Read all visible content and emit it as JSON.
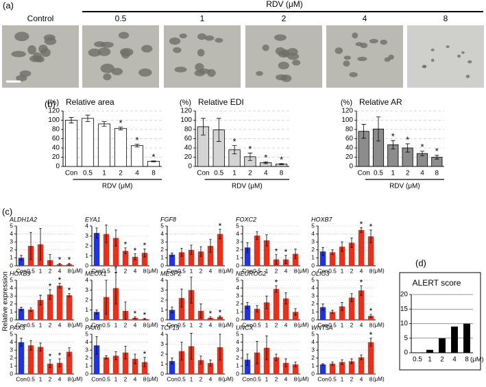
{
  "panel_labels": [
    "(a)",
    "(b)",
    "(c)",
    "(d)"
  ],
  "panel_a": {
    "header": "RDV (μM)",
    "labels": [
      "Control",
      "0.5",
      "1",
      "2",
      "4",
      "8"
    ]
  },
  "panel_c": {
    "ylabel": "Relative expression"
  },
  "chart_data": [
    {
      "type": "bar",
      "unit_label": "(%)",
      "title": "Relative area",
      "xlabel": "RDV (μM)",
      "categories": [
        "Con",
        "0.5",
        "1",
        "2",
        "4",
        "8"
      ],
      "values": [
        100,
        104,
        92,
        82,
        45,
        11
      ],
      "errors": [
        6,
        7,
        5,
        3,
        3,
        1
      ],
      "significance": [
        null,
        null,
        null,
        "*",
        "*",
        "*"
      ],
      "significance_color": "#000000",
      "color": "#ffffff",
      "ylim": [
        0,
        120
      ],
      "yticks": [
        0,
        20,
        40,
        60,
        80,
        100,
        120
      ],
      "grid": true
    },
    {
      "type": "bar",
      "unit_label": "(%)",
      "title": "Relative EDI",
      "xlabel": "RDV (μM)",
      "categories": [
        "Con",
        "0.5",
        "1",
        "2",
        "4",
        "8"
      ],
      "values": [
        86,
        79,
        36,
        21,
        8,
        5
      ],
      "errors": [
        18,
        25,
        9,
        8,
        2,
        1
      ],
      "significance": [
        null,
        null,
        "*",
        "*",
        "*",
        "*"
      ],
      "significance_color": "#000000",
      "color": "#d4d4d4",
      "ylim": [
        0,
        120
      ],
      "yticks": [
        0,
        20,
        40,
        60,
        80,
        100,
        120
      ],
      "grid": true
    },
    {
      "type": "bar",
      "unit_label": "(%)",
      "title": "Relative AR",
      "xlabel": "RDV (μM)",
      "categories": [
        "Con",
        "0.5",
        "1",
        "2",
        "4",
        "8"
      ],
      "values": [
        76,
        81,
        47,
        40,
        28,
        20
      ],
      "errors": [
        15,
        26,
        9,
        9,
        5,
        4
      ],
      "significance": [
        null,
        null,
        "*",
        "*",
        "*",
        "*"
      ],
      "significance_color": "#000000",
      "color": "#8c8c8c",
      "ylim": [
        0,
        120
      ],
      "yticks": [
        0,
        20,
        40,
        60,
        80,
        100,
        120
      ],
      "grid": true
    },
    {
      "type": "bar",
      "title": "ALDH1A2",
      "categories": [
        "Con",
        "0.5",
        "1",
        "2",
        "4",
        "8"
      ],
      "x_unit": "(μM)",
      "values": [
        1.0,
        2.5,
        2.7,
        0.7,
        0.2,
        0.2
      ],
      "errors": [
        0.3,
        1.7,
        2.0,
        0.7,
        0.1,
        0.1
      ],
      "significance": [
        null,
        null,
        null,
        null,
        "*",
        "*"
      ],
      "significance_color": "#e8311c",
      "colors": [
        "#2233dd",
        "#e8311c",
        "#e8311c",
        "#e8311c",
        "#e8311c",
        "#e8311c"
      ],
      "ylim": [
        0,
        5
      ],
      "yticks": [
        0,
        1,
        2,
        3,
        4,
        5
      ],
      "grid": true
    },
    {
      "type": "bar",
      "title": "EYA1",
      "categories": [
        "Con",
        "0.5",
        "1",
        "2",
        "4",
        "8"
      ],
      "x_unit": "(μM)",
      "values": [
        3.3,
        3.2,
        2.8,
        1.5,
        0.9,
        1.3
      ],
      "errors": [
        0.5,
        0.9,
        0.8,
        0.3,
        0.3,
        0.4
      ],
      "significance": [
        null,
        null,
        null,
        "*",
        "*",
        "*"
      ],
      "significance_color": "#e8311c",
      "colors": [
        "#2233dd",
        "#e8311c",
        "#e8311c",
        "#e8311c",
        "#e8311c",
        "#e8311c"
      ],
      "ylim": [
        0,
        4
      ],
      "yticks": [
        0,
        1,
        2,
        3,
        4
      ],
      "grid": true
    },
    {
      "type": "bar",
      "title": "FGF8",
      "categories": [
        "Con",
        "0.5",
        "1",
        "2",
        "4",
        "8"
      ],
      "x_unit": "(μM)",
      "values": [
        1.4,
        1.7,
        2.0,
        1.8,
        2.5,
        4.0
      ],
      "errors": [
        0.2,
        0.5,
        0.6,
        0.6,
        0.8,
        0.6
      ],
      "significance": [
        null,
        null,
        null,
        null,
        null,
        "*"
      ],
      "significance_color": "#e8311c",
      "colors": [
        "#2233dd",
        "#e8311c",
        "#e8311c",
        "#e8311c",
        "#e8311c",
        "#e8311c"
      ],
      "ylim": [
        0,
        5
      ],
      "yticks": [
        0,
        1,
        2,
        3,
        4,
        5
      ],
      "grid": true
    },
    {
      "type": "bar",
      "title": "FOXC2",
      "categories": [
        "Con",
        "0.5",
        "1",
        "2",
        "4",
        "8"
      ],
      "x_unit": "(μM)",
      "values": [
        2.3,
        3.8,
        3.2,
        0.8,
        0.8,
        1.5
      ],
      "errors": [
        0.6,
        0.5,
        0.7,
        0.6,
        0.5,
        0.6
      ],
      "significance": [
        null,
        null,
        null,
        "*",
        "*",
        null
      ],
      "significance_color": "#e8311c",
      "colors": [
        "#2233dd",
        "#e8311c",
        "#e8311c",
        "#e8311c",
        "#e8311c",
        "#e8311c"
      ],
      "ylim": [
        0,
        5
      ],
      "yticks": [
        0,
        1,
        2,
        3,
        4,
        5
      ],
      "grid": true
    },
    {
      "type": "bar",
      "title": "HOXB7",
      "categories": [
        "Con",
        "0.5",
        "1",
        "2",
        "4",
        "8"
      ],
      "x_unit": "(μM)",
      "values": [
        1.8,
        1.7,
        2.4,
        2.9,
        4.5,
        3.7
      ],
      "errors": [
        0.5,
        0.3,
        0.6,
        0.6,
        0.3,
        0.8
      ],
      "significance": [
        null,
        null,
        null,
        null,
        "*",
        "*"
      ],
      "significance_color": "#e8311c",
      "colors": [
        "#2233dd",
        "#e8311c",
        "#e8311c",
        "#e8311c",
        "#e8311c",
        "#e8311c"
      ],
      "ylim": [
        0,
        5
      ],
      "yticks": [
        0,
        1,
        2,
        3,
        4,
        5
      ],
      "grid": true
    },
    {
      "type": "bar",
      "title": "HOXB9",
      "categories": [
        "Con",
        "0.5",
        "1",
        "2",
        "4",
        "8"
      ],
      "x_unit": "(μM)",
      "values": [
        1.4,
        1.3,
        2.5,
        3.2,
        4.3,
        3.1
      ],
      "errors": [
        0.2,
        0.2,
        0.6,
        0.6,
        0.3,
        0.2
      ],
      "significance": [
        null,
        null,
        null,
        "*",
        "*",
        "*"
      ],
      "significance_color": "#e8311c",
      "colors": [
        "#2233dd",
        "#e8311c",
        "#e8311c",
        "#e8311c",
        "#e8311c",
        "#e8311c"
      ],
      "ylim": [
        0,
        5
      ],
      "yticks": [
        0,
        1,
        2,
        3,
        4,
        5
      ],
      "grid": true
    },
    {
      "type": "bar",
      "title": "MEOX1",
      "categories": [
        "Con",
        "0.5",
        "1",
        "2",
        "4",
        "8"
      ],
      "x_unit": "(μM)",
      "values": [
        0.8,
        2.3,
        3.2,
        0.9,
        0.2,
        0.1
      ],
      "errors": [
        0.2,
        1.7,
        1.6,
        0.9,
        0.1,
        0.05
      ],
      "significance": [
        null,
        null,
        "*",
        null,
        "*",
        "*"
      ],
      "significance_color": "#e8311c",
      "colors": [
        "#2233dd",
        "#e8311c",
        "#e8311c",
        "#e8311c",
        "#e8311c",
        "#e8311c"
      ],
      "ylim": [
        0,
        4
      ],
      "yticks": [
        0,
        1,
        2,
        3,
        4
      ],
      "grid": true
    },
    {
      "type": "bar",
      "title": "MESP2",
      "categories": [
        "Con",
        "0.5",
        "1",
        "2",
        "4",
        "8"
      ],
      "x_unit": "(μM)",
      "values": [
        1.0,
        2.2,
        3.0,
        0.9,
        0.2,
        0.3
      ],
      "errors": [
        0.3,
        0.9,
        1.3,
        0.7,
        0.1,
        0.1
      ],
      "significance": [
        null,
        null,
        null,
        null,
        "*",
        "*"
      ],
      "significance_color": "#e8311c",
      "colors": [
        "#2233dd",
        "#e8311c",
        "#e8311c",
        "#e8311c",
        "#e8311c",
        "#e8311c"
      ],
      "ylim": [
        0,
        4
      ],
      "yticks": [
        0,
        1,
        2,
        3,
        4
      ],
      "grid": true
    },
    {
      "type": "bar",
      "title": "NEUROG2",
      "categories": [
        "Con",
        "0.5",
        "1",
        "2",
        "4",
        "8"
      ],
      "x_unit": "(μM)",
      "values": [
        1.8,
        1.4,
        2.2,
        3.9,
        2.7,
        1.0
      ],
      "errors": [
        0.4,
        0.4,
        0.8,
        0.4,
        0.7,
        0.4
      ],
      "significance": [
        null,
        null,
        null,
        "*",
        null,
        null
      ],
      "significance_color": "#e8311c",
      "colors": [
        "#2233dd",
        "#e8311c",
        "#e8311c",
        "#e8311c",
        "#e8311c",
        "#e8311c"
      ],
      "ylim": [
        0,
        5
      ],
      "yticks": [
        0,
        1,
        2,
        3,
        4,
        5
      ],
      "grid": true
    },
    {
      "type": "bar",
      "title": "OLIG3",
      "categories": [
        "Con",
        "0.5",
        "1",
        "2",
        "4",
        "8"
      ],
      "x_unit": "(μM)",
      "values": [
        1.6,
        1.0,
        1.7,
        2.8,
        3.7,
        0.5
      ],
      "errors": [
        0.4,
        0.2,
        0.5,
        0.5,
        0.6,
        0.2
      ],
      "significance": [
        null,
        null,
        null,
        null,
        "*",
        "*"
      ],
      "significance_color": "#e8311c",
      "colors": [
        "#2233dd",
        "#e8311c",
        "#e8311c",
        "#e8311c",
        "#e8311c",
        "#e8311c"
      ],
      "ylim": [
        0,
        5
      ],
      "yticks": [
        0,
        1,
        2,
        3,
        4,
        5
      ],
      "grid": true
    },
    {
      "type": "bar",
      "title": "PAX3",
      "categories": [
        "Con",
        "0.5",
        "1",
        "2",
        "4",
        "8"
      ],
      "x_unit": "(μM)",
      "values": [
        4.0,
        3.6,
        3.4,
        1.3,
        1.4,
        2.8
      ],
      "errors": [
        0.5,
        0.6,
        0.5,
        0.5,
        0.5,
        0.5
      ],
      "significance": [
        null,
        null,
        null,
        "*",
        "*",
        null
      ],
      "significance_color": "#e8311c",
      "colors": [
        "#2233dd",
        "#e8311c",
        "#e8311c",
        "#e8311c",
        "#e8311c",
        "#e8311c"
      ],
      "ylim": [
        0,
        5
      ],
      "yticks": [
        0,
        1,
        2,
        3,
        4,
        5
      ],
      "grid": true
    },
    {
      "type": "bar",
      "title": "PAX6",
      "categories": [
        "Con",
        "0.5",
        "1",
        "2",
        "4",
        "8"
      ],
      "x_unit": "(μM)",
      "values": [
        3.6,
        2.1,
        2.3,
        2.7,
        1.9,
        1.5
      ],
      "errors": [
        1.1,
        0.2,
        0.5,
        0.8,
        0.6,
        0.6
      ],
      "significance": [
        null,
        null,
        null,
        null,
        null,
        "*"
      ],
      "significance_color": "#e8311c",
      "colors": [
        "#2233dd",
        "#e8311c",
        "#e8311c",
        "#e8311c",
        "#e8311c",
        "#e8311c"
      ],
      "ylim": [
        0,
        5
      ],
      "yticks": [
        0,
        1,
        2,
        3,
        4,
        5
      ],
      "grid": true
    },
    {
      "type": "bar",
      "title": "TCF15",
      "categories": [
        "Con",
        "0.5",
        "1",
        "2",
        "4",
        "8"
      ],
      "x_unit": "(μM)",
      "values": [
        1.3,
        2.3,
        2.8,
        1.4,
        1.1,
        2.7
      ],
      "errors": [
        0.3,
        0.9,
        1.3,
        0.4,
        0.3,
        1.3
      ],
      "significance": [
        null,
        null,
        null,
        null,
        null,
        null
      ],
      "significance_color": "#e8311c",
      "colors": [
        "#2233dd",
        "#e8311c",
        "#e8311c",
        "#e8311c",
        "#e8311c",
        "#e8311c"
      ],
      "ylim": [
        0,
        4
      ],
      "yticks": [
        0,
        1,
        2,
        3,
        4
      ],
      "grid": true
    },
    {
      "type": "bar",
      "title": "UNCX",
      "categories": [
        "Con",
        "0.5",
        "1",
        "2",
        "4",
        "8"
      ],
      "x_unit": "(μM)",
      "values": [
        1.8,
        2.7,
        3.3,
        2.1,
        1.4,
        1.2
      ],
      "errors": [
        0.7,
        1.4,
        1.5,
        0.4,
        0.5,
        0.3
      ],
      "significance": [
        null,
        null,
        null,
        null,
        null,
        null
      ],
      "significance_color": "#e8311c",
      "colors": [
        "#2233dd",
        "#e8311c",
        "#e8311c",
        "#e8311c",
        "#e8311c",
        "#e8311c"
      ],
      "ylim": [
        0,
        5
      ],
      "yticks": [
        0,
        1,
        2,
        3,
        4,
        5
      ],
      "grid": true
    },
    {
      "type": "bar",
      "title": "WNT5A",
      "categories": [
        "Con",
        "0.5",
        "1",
        "2",
        "4",
        "8"
      ],
      "x_unit": "(μM)",
      "values": [
        1.2,
        1.3,
        1.5,
        1.6,
        2.1,
        4.0
      ],
      "errors": [
        0.1,
        0.2,
        0.3,
        0.3,
        0.3,
        0.5
      ],
      "significance": [
        null,
        null,
        null,
        null,
        null,
        "*"
      ],
      "significance_color": "#e8311c",
      "colors": [
        "#2233dd",
        "#e8311c",
        "#e8311c",
        "#e8311c",
        "#e8311c",
        "#e8311c"
      ],
      "ylim": [
        0,
        5
      ],
      "yticks": [
        0,
        1,
        2,
        3,
        4,
        5
      ],
      "grid": true
    },
    {
      "type": "bar",
      "title": "ALERT score",
      "categories": [
        "0.5",
        "1",
        "2",
        "4",
        "8"
      ],
      "x_unit": "(μM)",
      "values": [
        0,
        1,
        5,
        9,
        10
      ],
      "color": "#000000",
      "ylim": [
        0,
        20
      ],
      "yticks": [
        0,
        5,
        10,
        15,
        20
      ],
      "grid": true
    }
  ]
}
